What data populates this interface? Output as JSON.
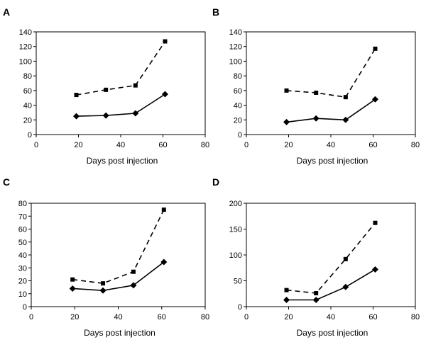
{
  "chart_data": [
    {
      "panel_label": "A",
      "type": "line",
      "xlabel": "Days post injection",
      "ylabel": "",
      "xlim": [
        0,
        80
      ],
      "ylim": [
        0,
        140
      ],
      "xticks": [
        0,
        20,
        40,
        60,
        80
      ],
      "yticks": [
        0,
        20,
        40,
        60,
        80,
        100,
        120,
        140
      ],
      "grid": false,
      "series": [
        {
          "marker": "square",
          "line": "dashed",
          "x": [
            19,
            33,
            47,
            61
          ],
          "y": [
            54,
            61,
            67,
            127
          ]
        },
        {
          "marker": "diamond",
          "line": "solid",
          "x": [
            19,
            33,
            47,
            61
          ],
          "y": [
            25,
            26,
            29,
            55
          ]
        }
      ]
    },
    {
      "panel_label": "B",
      "type": "line",
      "xlabel": "Days post injection",
      "ylabel": "",
      "xlim": [
        0,
        80
      ],
      "ylim": [
        0,
        140
      ],
      "xticks": [
        0,
        20,
        40,
        60,
        80
      ],
      "yticks": [
        0,
        20,
        40,
        60,
        80,
        100,
        120,
        140
      ],
      "grid": false,
      "series": [
        {
          "marker": "square",
          "line": "dashed",
          "x": [
            19,
            33,
            47,
            61
          ],
          "y": [
            60,
            57,
            51,
            117
          ]
        },
        {
          "marker": "diamond",
          "line": "solid",
          "x": [
            19,
            33,
            47,
            61
          ],
          "y": [
            17,
            22,
            20,
            48
          ]
        }
      ]
    },
    {
      "panel_label": "C",
      "type": "line",
      "xlabel": "Days post injection",
      "ylabel": "",
      "xlim": [
        0,
        80
      ],
      "ylim": [
        0,
        80
      ],
      "xticks": [
        0,
        20,
        40,
        60,
        80
      ],
      "yticks": [
        0,
        10,
        20,
        30,
        40,
        50,
        60,
        70,
        80
      ],
      "grid": false,
      "series": [
        {
          "marker": "square",
          "line": "dashed",
          "x": [
            19,
            33,
            47,
            61
          ],
          "y": [
            21,
            18,
            27,
            75
          ]
        },
        {
          "marker": "diamond",
          "line": "solid",
          "x": [
            19,
            33,
            47,
            61
          ],
          "y": [
            14,
            12.5,
            16.5,
            34.5
          ]
        }
      ]
    },
    {
      "panel_label": "D",
      "type": "line",
      "xlabel": "Days post injection",
      "ylabel": "",
      "xlim": [
        0,
        80
      ],
      "ylim": [
        0,
        200
      ],
      "xticks": [
        0,
        20,
        40,
        60,
        80
      ],
      "yticks": [
        0,
        50,
        100,
        150,
        200
      ],
      "grid": false,
      "series": [
        {
          "marker": "square",
          "line": "dashed",
          "x": [
            19,
            33,
            47,
            61
          ],
          "y": [
            32,
            26,
            92,
            162
          ]
        },
        {
          "marker": "diamond",
          "line": "solid",
          "x": [
            19,
            33,
            47,
            61
          ],
          "y": [
            13,
            13,
            38,
            72
          ]
        }
      ]
    }
  ]
}
